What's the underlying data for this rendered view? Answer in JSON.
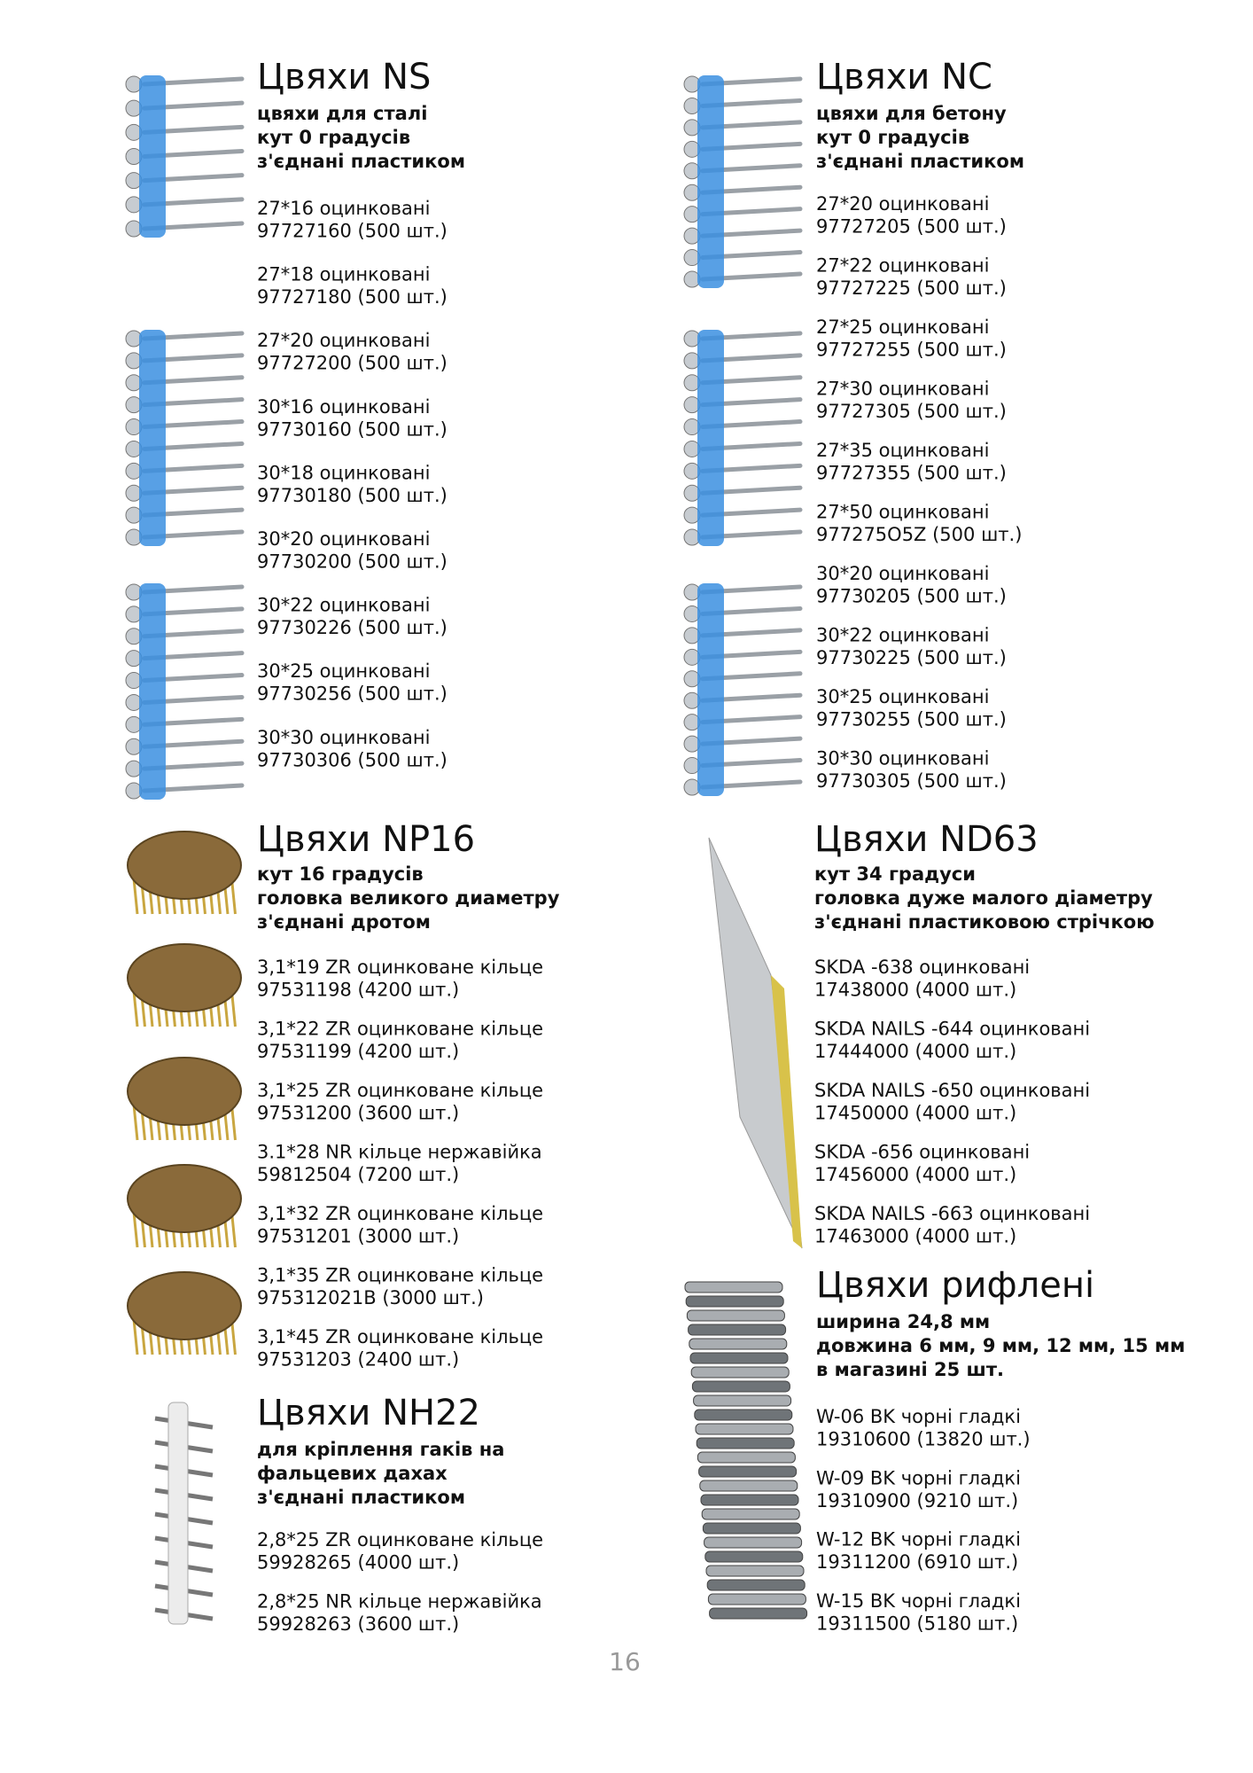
{
  "sections": [
    {
      "title": "Цвяхи NS",
      "description": [
        "цвяхи для сталі",
        "кут 0 градусів",
        "з'єднані пластиком"
      ],
      "items": [
        {
          "name": "27*16 оцинковані",
          "code": "97727160 (500 шт.)"
        },
        {
          "name": "27*18 оцинковані",
          "code": "97727180 (500 шт.)"
        },
        {
          "name": "27*20 оцинковані",
          "code": "97727200 (500 шт.)"
        },
        {
          "name": "30*16 оцинковані",
          "code": "97730160 (500 шт.)"
        },
        {
          "name": "30*18 оцинковані",
          "code": "97730180 (500 шт.)"
        },
        {
          "name": "30*20 оцинковані",
          "code": "97730200 (500 шт.)"
        },
        {
          "name": "30*22 оцинковані",
          "code": "97730226 (500 шт.)"
        },
        {
          "name": "30*25 оцинковані",
          "code": "97730256 (500 шт.)"
        },
        {
          "name": "30*30 оцинковані",
          "code": "97730306 (500 шт.)"
        }
      ]
    },
    {
      "title": "Цвяхи NC",
      "description": [
        "цвяхи для бетону",
        "кут 0 градусів",
        "з'єднані пластиком"
      ],
      "items": [
        {
          "name": "27*20 оцинковані",
          "code": "97727205 (500 шт.)"
        },
        {
          "name": "27*22 оцинковані",
          "code": "97727225 (500 шт.)"
        },
        {
          "name": "27*25 оцинковані",
          "code": "97727255 (500 шт.)"
        },
        {
          "name": "27*30 оцинковані",
          "code": "97727305 (500 шт.)"
        },
        {
          "name": "27*35 оцинковані",
          "code": "97727355 (500 шт.)"
        },
        {
          "name": "27*50 оцинковані",
          "code": "977275O5Z (500 шт.)"
        },
        {
          "name": "30*20 оцинковані",
          "code": "97730205 (500 шт.)"
        },
        {
          "name": "30*22 оцинковані",
          "code": "97730225 (500 шт.)"
        },
        {
          "name": "30*25 оцинковані",
          "code": "97730255 (500 шт.)"
        },
        {
          "name": "30*30 оцинковані",
          "code": "97730305 (500 шт.)"
        }
      ]
    },
    {
      "title": "Цвяхи NP16",
      "description": [
        "кут 16 градусів",
        "головка великого диаметру",
        "з'єднані дротом"
      ],
      "items": [
        {
          "name": "3,1*19 ZR оцинковане кільце",
          "code": "97531198 (4200 шт.)"
        },
        {
          "name": "3,1*22 ZR оцинковане кільце",
          "code": "97531199 (4200 шт.)"
        },
        {
          "name": "3,1*25 ZR оцинковане кільце",
          "code": "97531200 (3600 шт.)"
        },
        {
          "name": "3.1*28 NR кільце нержавійка",
          "code": "59812504 (7200 шт.)"
        },
        {
          "name": "3,1*32 ZR оцинковане кільце",
          "code": "97531201 (3000 шт.)"
        },
        {
          "name": "3,1*35 ZR оцинковане кільце",
          "code": "975312021B (3000 шт.)"
        },
        {
          "name": "3,1*45 ZR оцинковане кільце",
          "code": "97531203 (2400 шт.)"
        }
      ]
    },
    {
      "title": "Цвяхи ND63",
      "description": [
        "кут 34 градуси",
        "головка дуже малого діаметру",
        "з'єднані пластиковою стрічкою"
      ],
      "items": [
        {
          "name": "SKDA -638 оцинковані",
          "code": "17438000 (4000 шт.)"
        },
        {
          "name": "SKDA NAILS -644 оцинковані",
          "code": "17444000 (4000 шт.)"
        },
        {
          "name": "SKDA NAILS -650 оцинковані",
          "code": "17450000 (4000 шт.)"
        },
        {
          "name": "SKDA -656 оцинковані",
          "code": "17456000 (4000 шт.)"
        },
        {
          "name": "SKDA NAILS -663 оцинковані",
          "code": "17463000 (4000 шт.)"
        }
      ]
    },
    {
      "title": "Цвяхи рифлені",
      "description": [
        "ширина 24,8 мм",
        "довжина 6 мм, 9 мм, 12 мм, 15 мм",
        "в магазині 25 шт."
      ],
      "items": [
        {
          "name": "W-06 BK чорні гладкі",
          "code": "19310600 (13820 шт.)"
        },
        {
          "name": "W-09 BK чорні гладкі",
          "code": "19310900 (9210 шт.)"
        },
        {
          "name": "W-12 BK чорні гладкі",
          "code": "19311200 (6910 шт.)"
        },
        {
          "name": "W-15 BK чорні гладкі",
          "code": "19311500 (5180 шт.)"
        }
      ]
    },
    {
      "title": "Цвяхи NH22",
      "description": [
        "для кріплення гаків на",
        "фальцевих дахах",
        "з'єднані пластиком"
      ],
      "items": [
        {
          "name": "2,8*25 ZR оцинковане кільце",
          "code": "59928265 (4000 шт.)"
        },
        {
          "name": "2,8*25 NR кільце нержавійка",
          "code": "59928263 (3600 шт.)"
        }
      ]
    }
  ],
  "page_number": "16"
}
